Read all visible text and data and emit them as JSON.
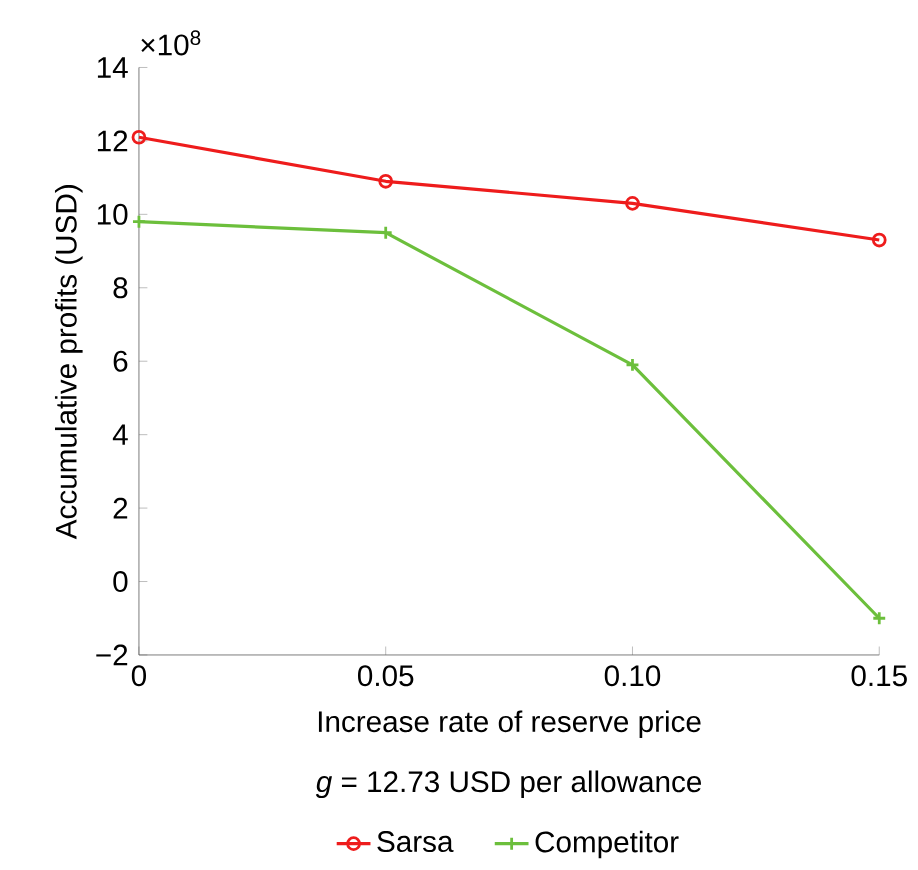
{
  "chart_data": {
    "type": "line",
    "xlabel": "Increase rate of reserve price",
    "ylabel": "Accumulative profits (USD)",
    "annotations": [
      "×10$^{8}$",
      "*g* = 12.73 USD per allowance"
    ],
    "x": [
      0,
      0.05,
      0.1,
      0.15
    ],
    "series": [
      {
        "name": "Sarsa",
        "color": "#ee1c1c",
        "marker": "circle",
        "values": [
          12.1,
          10.9,
          10.3,
          9.3
        ]
      },
      {
        "name": "Competitor",
        "color": "#6cbf3c",
        "marker": "cross",
        "values": [
          9.8,
          9.5,
          5.9,
          -1.0
        ]
      }
    ],
    "xlim": [
      0,
      0.15
    ],
    "xticks": [
      0,
      0.05,
      {
        "value": 0.1,
        "label": "0.10"
      },
      0.15
    ],
    "ylim": [
      -2,
      14
    ],
    "yticks": [
      {
        "value": -2,
        "label": "−2"
      },
      0,
      2,
      4,
      6,
      8,
      10,
      12,
      14
    ],
    "grid": false,
    "legend": "bottom",
    "line_style": "solid"
  }
}
